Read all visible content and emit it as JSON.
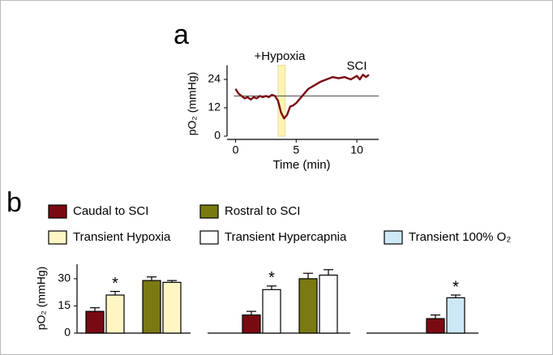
{
  "chart_data": [
    {
      "type": "line",
      "panel_label": "a",
      "xlabel": "Time (min)",
      "ylabel": "pO₂ (mmHg)",
      "annotations": [
        "+Hypoxia",
        "SCI"
      ],
      "x": [
        0,
        0.25,
        0.5,
        0.75,
        1,
        1.25,
        1.5,
        1.75,
        2,
        2.25,
        2.5,
        2.75,
        3,
        3.25,
        3.5,
        3.75,
        4,
        4.25,
        4.5,
        4.75,
        5,
        5.25,
        5.5,
        5.75,
        6,
        6.5,
        7,
        7.5,
        8,
        8.5,
        9,
        9.5,
        10,
        10.25,
        10.5,
        10.75,
        11
      ],
      "values": [
        20,
        18,
        17,
        16,
        16.5,
        15.5,
        16.5,
        16,
        17,
        16.5,
        17,
        16.5,
        17.5,
        17,
        15,
        10,
        7.5,
        9,
        12.5,
        13,
        14,
        15.5,
        17,
        18.5,
        20,
        21.5,
        23,
        24,
        25,
        24.5,
        25,
        24,
        25.5,
        24,
        26,
        25,
        26
      ],
      "color": "#7a0a12",
      "xlim": [
        -0.7,
        11.8
      ],
      "xticks": [
        0,
        5,
        10
      ],
      "ylim": [
        0,
        30
      ],
      "yticks": [
        0,
        12,
        24
      ],
      "reference_line": 17,
      "hypoxia_span": [
        3.5,
        4.1
      ],
      "span_color": "#fff3b0"
    },
    {
      "type": "bar",
      "panel_label": "b",
      "ylabel": "pO₂ (mmHg)",
      "legend": [
        {
          "name": "Caudal to SCI",
          "color": "#7a0a12"
        },
        {
          "name": "Rostral to SCI",
          "color": "#7a7a12"
        },
        {
          "name": "Transient Hypoxia",
          "color": "#fff6c4"
        },
        {
          "name": "Transient Hypercapnia",
          "color": "#ffffff"
        },
        {
          "name": "Transient 100% O₂",
          "color": "#cde9f7"
        }
      ],
      "groups": [
        {
          "values": [
            12,
            21,
            29,
            28
          ],
          "errors": [
            2,
            2,
            2,
            1
          ],
          "colors": [
            "#7a0a12",
            "#fff6c4",
            "#7a7a12",
            "#fff6c4"
          ],
          "annotations": [
            null,
            "*",
            null,
            null
          ]
        },
        {
          "values": [
            10,
            24,
            30,
            32
          ],
          "errors": [
            2,
            2,
            3,
            3
          ],
          "colors": [
            "#7a0a12",
            "#ffffff",
            "#7a7a12",
            "#ffffff"
          ],
          "annotations": [
            null,
            "*",
            null,
            null
          ]
        },
        {
          "values": [
            8,
            19.5
          ],
          "errors": [
            2,
            1.5
          ],
          "colors": [
            "#7a0a12",
            "#cde9f7"
          ],
          "annotations": [
            null,
            "*"
          ]
        }
      ],
      "ylim": [
        0,
        38
      ],
      "yticks": [
        0,
        15,
        30
      ]
    }
  ]
}
